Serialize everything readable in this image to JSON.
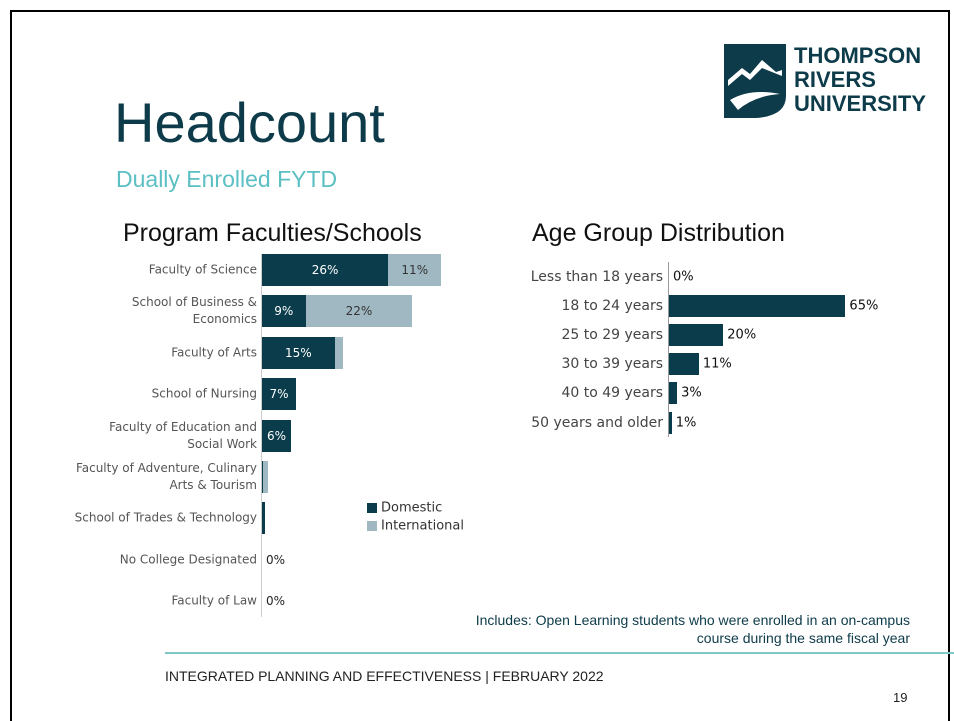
{
  "title": "Headcount",
  "subtitle": "Dually Enrolled FYTD",
  "logo": [
    "THOMPSON",
    "RIVERS",
    "UNIVERSITY"
  ],
  "note": "Includes: Open Learning students who were enrolled in an on-campus course during the same fiscal year",
  "footer": "INTEGRATED PLANNING AND EFFECTIVENESS | FEBRUARY 2022",
  "page_number": 19,
  "chart_data": [
    {
      "type": "stacked_bar",
      "orientation": "horizontal",
      "title": "Program Faculties/Schools",
      "categories": [
        "Faculty of Science",
        "School of Business & Economics",
        "Faculty of Arts",
        "School of Nursing",
        "Faculty of Education and Social Work",
        "Faculty of Adventure, Culinary Arts & Tourism",
        "School of Trades & Technology",
        "No College Designated",
        "Faculty of Law"
      ],
      "series": [
        {
          "name": "Domestic",
          "color": "#0b3c4b",
          "values": [
            26,
            9,
            15,
            7,
            6,
            0.3,
            0.6,
            0,
            0
          ],
          "value_labels": [
            "26%",
            "9%",
            "15%",
            "7%",
            "6%",
            null,
            null,
            "0%",
            "0%"
          ]
        },
        {
          "name": "International",
          "color": "#9fb8c2",
          "values": [
            11,
            22,
            1.6,
            0,
            0,
            1,
            0,
            0,
            0
          ],
          "value_labels": [
            "11%",
            "22%",
            null,
            null,
            null,
            null,
            null,
            null,
            null
          ]
        }
      ],
      "xlim": [
        0,
        40
      ],
      "legend": "lower right"
    },
    {
      "type": "bar",
      "orientation": "horizontal",
      "title": "Age Group Distribution",
      "categories": [
        "Less than 18 years",
        "18 to 24 years",
        "25 to 29 years",
        "30 to 39 years",
        "40 to 49 years",
        "50 years and older"
      ],
      "values": [
        0,
        65,
        20,
        11,
        3,
        1
      ],
      "value_labels": [
        "0%",
        "65%",
        "20%",
        "11%",
        "3%",
        "1%"
      ],
      "color": "#0b3c4b",
      "xlim": [
        0,
        70
      ]
    }
  ]
}
